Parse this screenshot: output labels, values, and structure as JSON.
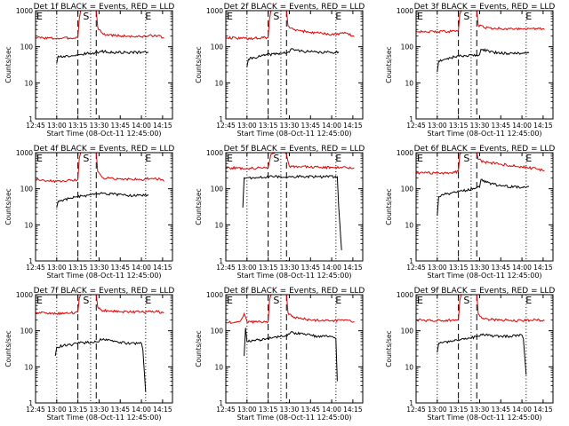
{
  "colors": {
    "events": "#000000",
    "lld": "#e00000",
    "axes": "#000000",
    "background": "#ffffff"
  },
  "chart_data": [
    {
      "type": "line",
      "title": "Det 1f BLACK = Events, RED = LLD",
      "xlabel": "Start Time (08-Oct-11 12:45:00)",
      "ylabel": "Counts/sec",
      "x_ticks": [
        "12:45",
        "13:00",
        "13:15",
        "13:30",
        "13:45",
        "14:00",
        "14:15"
      ],
      "y_ticks": [
        "1",
        "10",
        "100",
        "1000"
      ],
      "yscale": "log",
      "ylim": [
        1,
        1000
      ],
      "markers": [
        {
          "label": "E",
          "time": "12:45"
        },
        {
          "label": "S",
          "time": "13:18"
        },
        {
          "label": "E",
          "time": "14:02"
        }
      ],
      "vlines_dotted": [
        "13:00",
        "13:24",
        "14:03"
      ],
      "vlines_dashed": [
        "13:15",
        "13:28"
      ],
      "series": [
        {
          "x": [
            "12:45",
            "13:00",
            "13:10",
            "13:15",
            "13:16",
            "13:17",
            "13:28",
            "13:29",
            "13:33",
            "13:45",
            "14:00",
            "14:10",
            "14:16"
          ],
          "values": [
            180,
            170,
            175,
            180,
            600,
            1000,
            1000,
            350,
            220,
            200,
            190,
            210,
            175
          ]
        },
        {
          "x": [
            "13:00",
            "13:01",
            "13:05",
            "13:10",
            "13:14",
            "13:30",
            "13:31",
            "13:40",
            "13:50",
            "14:00",
            "14:05"
          ],
          "values": [
            35,
            55,
            55,
            55,
            60,
            70,
            75,
            70,
            70,
            70,
            70
          ]
        }
      ]
    },
    {
      "type": "line",
      "title": "Det 2f BLACK = Events, RED = LLD",
      "xlabel": "Start Time (08-Oct-11 12:45:00)",
      "ylabel": "Counts/sec",
      "x_ticks": [
        "12:45",
        "13:00",
        "13:15",
        "13:30",
        "13:45",
        "14:00",
        "14:15"
      ],
      "y_ticks": [
        "1",
        "10",
        "100",
        "1000"
      ],
      "yscale": "log",
      "ylim": [
        1,
        1000
      ],
      "markers": [
        {
          "label": "E",
          "time": "12:45"
        },
        {
          "label": "S",
          "time": "13:18"
        },
        {
          "label": "E",
          "time": "14:02"
        }
      ],
      "vlines_dotted": [
        "13:00",
        "13:24",
        "14:03"
      ],
      "vlines_dashed": [
        "13:15",
        "13:28"
      ],
      "series": [
        {
          "x": [
            "12:45",
            "13:00",
            "13:10",
            "13:15",
            "13:16",
            "13:17",
            "13:28",
            "13:29",
            "13:33",
            "13:45",
            "14:00",
            "14:10",
            "14:16"
          ],
          "values": [
            180,
            170,
            175,
            180,
            600,
            1000,
            1000,
            380,
            300,
            250,
            220,
            240,
            190
          ]
        },
        {
          "x": [
            "13:00",
            "13:01",
            "13:05",
            "13:10",
            "13:14",
            "13:30",
            "13:31",
            "13:40",
            "13:50",
            "14:00",
            "14:05"
          ],
          "values": [
            28,
            45,
            50,
            55,
            60,
            70,
            85,
            75,
            70,
            70,
            72
          ]
        }
      ]
    },
    {
      "type": "line",
      "title": "Det 3f BLACK = Events, RED = LLD",
      "xlabel": "Start Time (08-Oct-11 12:45:00)",
      "ylabel": "Counts/sec",
      "x_ticks": [
        "12:45",
        "13:00",
        "13:15",
        "13:30",
        "13:45",
        "14:00",
        "14:15"
      ],
      "y_ticks": [
        "1",
        "10",
        "100",
        "1000"
      ],
      "yscale": "log",
      "ylim": [
        1,
        1000
      ],
      "markers": [
        {
          "label": "E",
          "time": "12:45"
        },
        {
          "label": "S",
          "time": "13:18"
        },
        {
          "label": "E",
          "time": "14:02"
        }
      ],
      "vlines_dotted": [
        "13:00",
        "13:24",
        "14:03"
      ],
      "vlines_dashed": [
        "13:15",
        "13:28"
      ],
      "series": [
        {
          "x": [
            "12:45",
            "13:00",
            "13:10",
            "13:15",
            "13:16",
            "13:17",
            "13:28",
            "13:29",
            "13:33",
            "13:45",
            "14:00",
            "14:10",
            "14:16"
          ],
          "values": [
            270,
            260,
            265,
            280,
            800,
            1000,
            1000,
            400,
            340,
            320,
            310,
            320,
            300
          ]
        },
        {
          "x": [
            "13:00",
            "13:01",
            "13:05",
            "13:10",
            "13:14",
            "13:30",
            "13:31",
            "13:40",
            "13:50",
            "14:00",
            "14:05"
          ],
          "values": [
            20,
            40,
            45,
            50,
            55,
            60,
            85,
            70,
            65,
            65,
            68
          ]
        }
      ]
    },
    {
      "type": "line",
      "title": "Det 4f BLACK = Events, RED = LLD",
      "xlabel": "Start Time (08-Oct-11 12:45:00)",
      "ylabel": "Counts/sec",
      "x_ticks": [
        "12:45",
        "13:00",
        "13:15",
        "13:30",
        "13:45",
        "14:00",
        "14:15"
      ],
      "y_ticks": [
        "1",
        "10",
        "100",
        "1000"
      ],
      "yscale": "log",
      "ylim": [
        1,
        1000
      ],
      "markers": [
        {
          "label": "E",
          "time": "12:45"
        },
        {
          "label": "S",
          "time": "13:18"
        },
        {
          "label": "E",
          "time": "14:02"
        }
      ],
      "vlines_dotted": [
        "13:00",
        "13:24",
        "14:03"
      ],
      "vlines_dashed": [
        "13:15",
        "13:28"
      ],
      "series": [
        {
          "x": [
            "12:45",
            "13:00",
            "13:10",
            "13:15",
            "13:16",
            "13:17",
            "13:28",
            "13:29",
            "13:33",
            "13:45",
            "14:00",
            "14:10",
            "14:16"
          ],
          "values": [
            180,
            160,
            170,
            180,
            700,
            1000,
            1000,
            300,
            200,
            190,
            180,
            200,
            160
          ]
        },
        {
          "x": [
            "13:00",
            "13:01",
            "13:05",
            "13:10",
            "13:14",
            "13:30",
            "13:31",
            "13:40",
            "13:50",
            "14:00",
            "14:05"
          ],
          "values": [
            30,
            45,
            50,
            55,
            60,
            70,
            75,
            70,
            65,
            65,
            68
          ]
        }
      ]
    },
    {
      "type": "line",
      "title": "Det 5f BLACK = Events, RED = LLD",
      "xlabel": "Start Time (08-Oct-11 12:45:00)",
      "ylabel": "Counts/sec",
      "x_ticks": [
        "12:45",
        "13:00",
        "13:15",
        "13:30",
        "13:45",
        "14:00",
        "14:15"
      ],
      "y_ticks": [
        "1",
        "10",
        "100",
        "1000"
      ],
      "yscale": "log",
      "ylim": [
        1,
        1000
      ],
      "markers": [
        {
          "label": "E",
          "time": "12:45"
        },
        {
          "label": "S",
          "time": "13:18"
        },
        {
          "label": "E",
          "time": "14:02"
        }
      ],
      "vlines_dotted": [
        "13:00",
        "13:24",
        "14:03"
      ],
      "vlines_dashed": [
        "13:15",
        "13:28"
      ],
      "series": [
        {
          "x": [
            "12:45",
            "13:00",
            "13:10",
            "13:15",
            "13:17",
            "13:20",
            "13:27",
            "13:28",
            "13:30",
            "13:45",
            "14:00",
            "14:10",
            "14:16"
          ],
          "values": [
            380,
            370,
            375,
            390,
            900,
            1000,
            1000,
            900,
            420,
            400,
            390,
            400,
            380
          ]
        },
        {
          "x": [
            "12:57",
            "12:58",
            "13:05",
            "13:14",
            "13:16",
            "13:29",
            "13:30",
            "13:40",
            "13:50",
            "14:04",
            "14:05",
            "14:07"
          ],
          "values": [
            30,
            200,
            200,
            210,
            220,
            210,
            220,
            215,
            215,
            215,
            30,
            2
          ]
        }
      ]
    },
    {
      "type": "line",
      "title": "Det 6f BLACK = Events, RED = LLD",
      "xlabel": "Start Time (08-Oct-11 12:45:00)",
      "ylabel": "Counts/sec",
      "x_ticks": [
        "12:45",
        "13:00",
        "13:15",
        "13:30",
        "13:45",
        "14:00",
        "14:15"
      ],
      "y_ticks": [
        "1",
        "10",
        "100",
        "1000"
      ],
      "yscale": "log",
      "ylim": [
        1,
        1000
      ],
      "markers": [
        {
          "label": "E",
          "time": "12:45"
        },
        {
          "label": "S",
          "time": "13:18"
        },
        {
          "label": "E",
          "time": "14:02"
        }
      ],
      "vlines_dotted": [
        "13:00",
        "13:24",
        "14:03"
      ],
      "vlines_dashed": [
        "13:15",
        "13:28"
      ],
      "series": [
        {
          "x": [
            "12:45",
            "13:00",
            "13:10",
            "13:15",
            "13:16",
            "13:17",
            "13:28",
            "13:29",
            "13:33",
            "13:45",
            "14:00",
            "14:10",
            "14:16"
          ],
          "values": [
            280,
            270,
            275,
            300,
            900,
            1000,
            1000,
            650,
            560,
            480,
            400,
            360,
            320
          ]
        },
        {
          "x": [
            "13:00",
            "13:01",
            "13:05",
            "13:10",
            "13:14",
            "13:30",
            "13:31",
            "13:35",
            "13:45",
            "14:00",
            "14:05"
          ],
          "values": [
            18,
            60,
            70,
            75,
            80,
            110,
            180,
            150,
            120,
            110,
            115
          ]
        }
      ]
    },
    {
      "type": "line",
      "title": "Det 7f BLACK = Events, RED = LLD",
      "xlabel": "Start Time (08-Oct-11 12:45:00)",
      "ylabel": "Counts/sec",
      "x_ticks": [
        "12:45",
        "13:00",
        "13:15",
        "13:30",
        "13:45",
        "14:00",
        "14:15"
      ],
      "y_ticks": [
        "1",
        "10",
        "100",
        "1000"
      ],
      "yscale": "log",
      "ylim": [
        1,
        1000
      ],
      "markers": [
        {
          "label": "E",
          "time": "12:45"
        },
        {
          "label": "S",
          "time": "13:18"
        },
        {
          "label": "E",
          "time": "14:02"
        }
      ],
      "vlines_dotted": [
        "13:00",
        "13:24",
        "14:03"
      ],
      "vlines_dashed": [
        "13:15",
        "13:28"
      ],
      "series": [
        {
          "x": [
            "12:45",
            "13:00",
            "13:10",
            "13:15",
            "13:16",
            "13:17",
            "13:28",
            "13:29",
            "13:33",
            "13:45",
            "14:00",
            "14:10",
            "14:16"
          ],
          "values": [
            320,
            300,
            310,
            330,
            800,
            1000,
            1000,
            450,
            360,
            340,
            330,
            340,
            320
          ]
        },
        {
          "x": [
            "12:59",
            "13:00",
            "13:05",
            "13:10",
            "13:14",
            "13:30",
            "13:31",
            "13:40",
            "13:50",
            "14:00",
            "14:01",
            "14:03"
          ],
          "values": [
            20,
            35,
            40,
            40,
            45,
            50,
            60,
            50,
            45,
            45,
            30,
            2
          ]
        }
      ]
    },
    {
      "type": "line",
      "title": "Det 8f BLACK = Events, RED = LLD",
      "xlabel": "Start Time (08-Oct-11 12:45:00)",
      "ylabel": "Counts/sec",
      "x_ticks": [
        "12:45",
        "13:00",
        "13:15",
        "13:30",
        "13:45",
        "14:00",
        "14:15"
      ],
      "y_ticks": [
        "1",
        "10",
        "100",
        "1000"
      ],
      "yscale": "log",
      "ylim": [
        1,
        1000
      ],
      "markers": [
        {
          "label": "E",
          "time": "12:45"
        },
        {
          "label": "S",
          "time": "13:18"
        },
        {
          "label": "E",
          "time": "14:02"
        }
      ],
      "vlines_dotted": [
        "13:00",
        "13:24",
        "14:03"
      ],
      "vlines_dashed": [
        "13:15",
        "13:28"
      ],
      "series": [
        {
          "x": [
            "12:45",
            "12:55",
            "12:58",
            "13:00",
            "13:10",
            "13:15",
            "13:16",
            "13:17",
            "13:28",
            "13:29",
            "13:33",
            "13:45",
            "14:00",
            "14:10",
            "14:16"
          ],
          "values": [
            170,
            180,
            300,
            180,
            175,
            180,
            700,
            1000,
            1000,
            320,
            230,
            200,
            190,
            200,
            180
          ]
        },
        {
          "x": [
            "12:58",
            "12:59",
            "13:00",
            "13:05",
            "13:10",
            "13:14",
            "13:30",
            "13:31",
            "13:40",
            "13:50",
            "14:00",
            "14:03",
            "14:04"
          ],
          "values": [
            20,
            120,
            50,
            55,
            55,
            60,
            80,
            90,
            80,
            70,
            70,
            60,
            4
          ]
        }
      ]
    },
    {
      "type": "line",
      "title": "Det 9f BLACK = Events, RED = LLD",
      "xlabel": "Start Time (08-Oct-11 12:45:00)",
      "ylabel": "Counts/sec",
      "x_ticks": [
        "12:45",
        "13:00",
        "13:15",
        "13:30",
        "13:45",
        "14:00",
        "14:15"
      ],
      "y_ticks": [
        "1",
        "10",
        "100",
        "1000"
      ],
      "yscale": "log",
      "ylim": [
        1,
        1000
      ],
      "markers": [
        {
          "label": "E",
          "time": "12:45"
        },
        {
          "label": "S",
          "time": "13:18"
        },
        {
          "label": "E",
          "time": "14:02"
        }
      ],
      "vlines_dotted": [
        "13:00",
        "13:24",
        "14:03"
      ],
      "vlines_dashed": [
        "13:15",
        "13:28"
      ],
      "series": [
        {
          "x": [
            "12:45",
            "13:00",
            "13:10",
            "13:15",
            "13:16",
            "13:17",
            "13:28",
            "13:29",
            "13:33",
            "13:45",
            "14:00",
            "14:10",
            "14:16"
          ],
          "values": [
            200,
            190,
            195,
            200,
            700,
            1000,
            1000,
            300,
            210,
            200,
            190,
            200,
            190
          ]
        },
        {
          "x": [
            "13:00",
            "13:01",
            "13:05",
            "13:10",
            "13:14",
            "13:30",
            "13:31",
            "13:40",
            "13:50",
            "14:00",
            "14:01",
            "14:03"
          ],
          "values": [
            25,
            45,
            50,
            50,
            55,
            70,
            80,
            70,
            70,
            75,
            60,
            6
          ]
        }
      ]
    }
  ]
}
